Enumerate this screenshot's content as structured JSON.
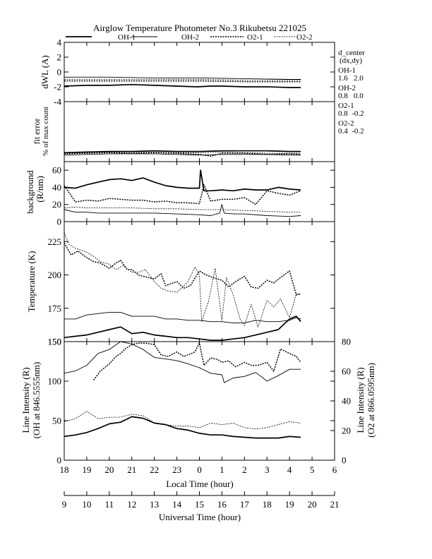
{
  "title": "Airglow Temperature Photometer No.3 Rikubetsu 221025",
  "legend": [
    {
      "label": "OH-1",
      "style": "solid-thick"
    },
    {
      "label": "OH-2",
      "style": "solid-thin"
    },
    {
      "label": "O2-1",
      "style": "dotted-thick"
    },
    {
      "label": "O2-2",
      "style": "dotted-thin"
    }
  ],
  "side_info": {
    "header1": "d_center",
    "header2": "(dx,dy)",
    "entries": [
      {
        "name": "OH-1",
        "values": "1.6   2.0"
      },
      {
        "name": "OH-2",
        "values": "0.8   0.0"
      },
      {
        "name": "O2-1",
        "values": "0.8  -0.2"
      },
      {
        "name": "O2-2",
        "values": "0.4  -0.2"
      }
    ]
  },
  "axes": {
    "local_time_label": "Local Time (hour)",
    "local_time_ticks": [
      "18",
      "19",
      "20",
      "21",
      "22",
      "23",
      "0",
      "1",
      "2",
      "3",
      "4",
      "5",
      "6"
    ],
    "ut_label": "Universal Time (hour)",
    "ut_ticks": [
      "9",
      "10",
      "11",
      "12",
      "13",
      "14",
      "15",
      "16",
      "17",
      "18",
      "19",
      "20",
      "21"
    ]
  },
  "chart_data": [
    {
      "type": "line",
      "panel": "dwl",
      "ylabel": "dWL (A)",
      "ylim": [
        -4,
        4
      ],
      "yticks": [
        "4",
        "2",
        "0",
        "-2",
        "-4"
      ],
      "x_unit": "local time hour (18 = 0 offset, continuing past midnight as 24+)",
      "series": [
        {
          "name": "OH-1",
          "x": [
            18.0,
            19.0,
            20.0,
            21.0,
            22.0,
            23.0,
            23.9,
            24.5,
            25.0,
            26.0,
            27.0,
            28.0,
            28.5
          ],
          "y": [
            -1.9,
            -1.8,
            -1.8,
            -1.7,
            -1.8,
            -1.9,
            -2.0,
            -1.9,
            -1.9,
            -2.0,
            -2.0,
            -2.1,
            -2.1
          ]
        },
        {
          "name": "OH-2",
          "x": [
            18.0,
            20.0,
            22.0,
            24.0,
            26.0,
            28.0,
            28.5
          ],
          "y": [
            -0.7,
            -0.7,
            -0.8,
            -0.8,
            -0.9,
            -1.0,
            -1.0
          ]
        },
        {
          "name": "O2-1",
          "x": [
            18.0,
            20.0,
            22.0,
            24.0,
            26.0,
            28.0,
            28.5
          ],
          "y": [
            -1.2,
            -1.2,
            -1.2,
            -1.2,
            -1.3,
            -1.3,
            -1.3
          ]
        },
        {
          "name": "O2-2",
          "x": [
            18.0,
            20.0,
            22.0,
            24.0,
            26.0,
            28.0,
            28.5
          ],
          "y": [
            -1.0,
            -1.0,
            -1.0,
            -1.0,
            -1.1,
            -1.1,
            -1.1
          ]
        }
      ]
    },
    {
      "type": "line",
      "panel": "fit_error",
      "ylabel": "fit error",
      "ylabel2": "% of max count",
      "ylim": [
        0,
        5
      ],
      "series": [
        {
          "name": "OH-1",
          "x": [
            18.0,
            19.0,
            20.0,
            21.0,
            22.0,
            23.0,
            24.0,
            25.0,
            26.0,
            27.0,
            28.0,
            28.5
          ],
          "y": [
            0.75,
            0.8,
            0.85,
            0.85,
            0.9,
            0.85,
            0.85,
            0.9,
            0.9,
            0.9,
            0.85,
            0.85
          ]
        },
        {
          "name": "OH-2",
          "x": [
            18.0,
            19.0,
            20.0,
            21.0,
            22.0,
            23.0,
            24.0,
            25.0,
            26.0,
            27.0,
            28.0,
            28.5
          ],
          "y": [
            0.55,
            0.6,
            0.65,
            0.65,
            0.65,
            0.6,
            0.55,
            0.6,
            0.6,
            0.6,
            0.55,
            0.55
          ]
        },
        {
          "name": "O2-1",
          "x": [
            18.0,
            19.0,
            20.0,
            21.0,
            22.0,
            23.0,
            24.0,
            24.5,
            25.0,
            26.0,
            27.0,
            28.0,
            28.5
          ],
          "y": [
            0.65,
            0.7,
            0.75,
            0.7,
            0.75,
            0.7,
            0.6,
            0.45,
            0.7,
            0.7,
            0.6,
            0.65,
            0.6
          ]
        },
        {
          "name": "O2-2",
          "x": [
            18.0,
            19.0,
            20.0,
            21.0,
            22.0,
            23.0,
            24.0,
            25.0,
            26.0,
            27.0,
            28.0,
            28.5
          ],
          "y": [
            0.7,
            0.75,
            0.8,
            0.8,
            0.8,
            0.75,
            0.75,
            0.8,
            0.75,
            0.7,
            0.7,
            0.7
          ]
        }
      ]
    },
    {
      "type": "line",
      "panel": "background",
      "ylabel": "background",
      "ylabel2": "(R/nm)",
      "ylim": [
        0,
        70
      ],
      "yticks": [
        "0",
        "20",
        "40",
        "60"
      ],
      "series": [
        {
          "name": "OH-1",
          "x": [
            18.0,
            18.5,
            19.0,
            19.5,
            20.0,
            20.5,
            21.0,
            21.5,
            22.0,
            22.5,
            23.0,
            23.5,
            24.0,
            24.05,
            24.2,
            24.5,
            25.0,
            25.5,
            26.0,
            26.5,
            27.0,
            27.5,
            28.0,
            28.5
          ],
          "y": [
            40,
            39,
            43,
            46,
            49,
            50,
            48,
            51,
            46,
            42,
            40,
            39,
            39,
            60,
            36,
            36,
            37,
            36,
            38,
            37,
            37,
            40,
            38,
            37
          ]
        },
        {
          "name": "OH-2",
          "x": [
            18.0,
            18.5,
            19.0,
            19.5,
            20.0,
            20.5,
            21.0,
            22.0,
            23.0,
            24.0,
            24.5,
            24.9,
            25.0,
            25.1,
            25.5,
            26.0,
            27.0,
            28.0,
            28.5
          ],
          "y": [
            14,
            11,
            11,
            10,
            10,
            10,
            10,
            10,
            9,
            8,
            7,
            10,
            20,
            10,
            9,
            9,
            7,
            6,
            7
          ]
        },
        {
          "name": "O2-1",
          "x": [
            18.0,
            18.5,
            19.0,
            19.5,
            20.0,
            20.5,
            21.0,
            21.5,
            22.0,
            22.5,
            23.0,
            23.5,
            24.0,
            24.2,
            24.5,
            25.0,
            25.5,
            26.0,
            26.5,
            27.0,
            27.5,
            28.0,
            28.5
          ],
          "y": [
            42,
            23,
            25,
            24,
            27,
            26,
            25,
            25,
            23,
            24,
            22,
            22,
            21,
            43,
            24,
            26,
            26,
            28,
            20,
            36,
            33,
            31,
            36
          ]
        },
        {
          "name": "O2-2",
          "x": [
            18.0,
            18.5,
            19.0,
            20.0,
            21.0,
            22.0,
            23.0,
            24.0,
            25.0,
            26.0,
            27.0,
            28.0,
            28.5
          ],
          "y": [
            16,
            17,
            16,
            16,
            16,
            15,
            15,
            14,
            14,
            13,
            12,
            11,
            11
          ]
        }
      ]
    },
    {
      "type": "line",
      "panel": "temperature",
      "ylabel": "Temperature (K)",
      "ylim": [
        150,
        240
      ],
      "yticks": [
        "150",
        "175",
        "200",
        "225"
      ],
      "series": [
        {
          "name": "OH-1",
          "x": [
            18.0,
            18.5,
            19.0,
            19.5,
            20.0,
            20.5,
            21.0,
            21.5,
            22.0,
            22.5,
            23.0,
            23.5,
            24.0,
            24.5,
            25.0,
            25.5,
            26.0,
            26.5,
            27.0,
            27.5,
            28.0,
            28.3,
            28.5
          ],
          "y": [
            153,
            154,
            155,
            157,
            159,
            161,
            156,
            157,
            155,
            154,
            153,
            153,
            152,
            151,
            151,
            152,
            153,
            155,
            157,
            159,
            167,
            169,
            165
          ]
        },
        {
          "name": "OH-2",
          "x": [
            18.0,
            18.5,
            19.0,
            19.5,
            20.0,
            20.5,
            21.0,
            21.5,
            22.0,
            22.5,
            23.0,
            23.5,
            24.0,
            24.5,
            25.0,
            25.5,
            26.0,
            26.5,
            27.0,
            27.5,
            28.0,
            28.3,
            28.5
          ],
          "y": [
            167,
            167,
            170,
            171,
            172,
            172,
            169,
            169,
            169,
            167,
            167,
            166,
            166,
            165,
            165,
            164,
            164,
            166,
            165,
            165,
            166,
            168,
            167
          ]
        },
        {
          "name": "O2-1",
          "x": [
            18.0,
            18.3,
            18.6,
            19.0,
            19.3,
            19.6,
            20.0,
            20.3,
            20.5,
            20.8,
            21.0,
            21.3,
            21.5,
            22.0,
            22.3,
            22.5,
            23.0,
            23.3,
            23.6,
            24.0,
            24.3,
            24.6,
            25.0,
            25.3,
            25.6,
            26.0,
            26.3,
            26.6,
            27.0,
            27.3,
            27.6,
            28.0,
            28.3,
            28.5
          ],
          "y": [
            224,
            215,
            218,
            213,
            210,
            209,
            205,
            209,
            211,
            204,
            204,
            200,
            199,
            197,
            201,
            192,
            195,
            190,
            192,
            203,
            200,
            198,
            196,
            191,
            195,
            199,
            191,
            190,
            196,
            194,
            198,
            203,
            185,
            186
          ]
        },
        {
          "name": "O2-2",
          "x": [
            18.0,
            18.2,
            18.5,
            19.0,
            19.3,
            19.6,
            20.0,
            20.3,
            20.6,
            21.0,
            21.3,
            21.6,
            22.0,
            22.3,
            22.6,
            23.0,
            23.2,
            23.5,
            23.8,
            24.0,
            24.1,
            24.4,
            24.7,
            25.0,
            25.2,
            25.5,
            25.8,
            26.0,
            26.3,
            26.6,
            27.0,
            27.3,
            27.6,
            28.0,
            28.3,
            28.5
          ],
          "y": [
            232,
            223,
            220,
            217,
            214,
            210,
            208,
            204,
            207,
            202,
            202,
            204,
            195,
            190,
            188,
            187,
            190,
            195,
            206,
            200,
            165,
            180,
            205,
            166,
            198,
            185,
            167,
            162,
            178,
            161,
            181,
            176,
            182,
            168,
            186,
            185
          ]
        }
      ]
    },
    {
      "type": "line",
      "panel": "line_intensity",
      "ylabel": "Line Intensity (R)",
      "ylabel2": "(OH at 846.5555nm)",
      "ylim": [
        0,
        150
      ],
      "yticks": [
        "0",
        "50",
        "100",
        "150"
      ],
      "y2label": "Line Intensity (R)",
      "y2label2": "(O2 at 866.0595nm)",
      "y2lim": [
        0,
        80
      ],
      "y2ticks": [
        "0",
        "20",
        "40",
        "60",
        "80"
      ],
      "series": [
        {
          "name": "OH-1",
          "axis": "left",
          "x": [
            18.0,
            18.5,
            19.0,
            19.5,
            20.0,
            20.5,
            21.0,
            21.5,
            22.0,
            22.5,
            23.0,
            23.5,
            24.0,
            24.5,
            25.0,
            25.5,
            26.0,
            26.5,
            27.0,
            27.5,
            28.0,
            28.5
          ],
          "y": [
            30,
            32,
            35,
            40,
            46,
            48,
            55,
            53,
            47,
            45,
            40,
            38,
            34,
            32,
            32,
            30,
            29,
            28,
            28,
            28,
            30,
            29
          ]
        },
        {
          "name": "OH-2",
          "axis": "left",
          "x": [
            18.0,
            18.5,
            19.0,
            19.5,
            20.0,
            20.5,
            21.0,
            21.5,
            22.0,
            22.5,
            23.0,
            23.5,
            24.0,
            24.5,
            25.0,
            25.1,
            25.5,
            26.0,
            26.5,
            27.0,
            27.5,
            28.0,
            28.5
          ],
          "y": [
            110,
            113,
            120,
            135,
            140,
            150,
            147,
            140,
            130,
            128,
            126,
            122,
            117,
            110,
            108,
            98,
            104,
            106,
            111,
            100,
            107,
            115,
            115
          ]
        },
        {
          "name": "O2-1",
          "axis": "right",
          "x": [
            19.3,
            19.6,
            20.0,
            20.3,
            20.5,
            20.7,
            21.0,
            21.3,
            21.6,
            22.0,
            22.3,
            22.6,
            23.0,
            23.3,
            23.5,
            23.8,
            24.0,
            24.2,
            24.5,
            24.8,
            25.0,
            25.3,
            25.6,
            26.0,
            26.3,
            26.6,
            27.0,
            27.3,
            27.6,
            28.0,
            28.3,
            28.5
          ],
          "y": [
            54,
            60,
            65,
            70,
            72,
            75,
            78,
            79,
            79,
            78,
            71,
            70,
            73,
            70,
            71,
            73,
            79,
            64,
            69,
            68,
            66,
            67,
            63,
            66,
            64,
            64,
            66,
            60,
            75,
            72,
            70,
            66
          ]
        },
        {
          "name": "O2-2",
          "axis": "right",
          "x": [
            18.0,
            18.5,
            19.0,
            19.5,
            20.0,
            20.5,
            21.0,
            21.5,
            22.0,
            22.5,
            23.0,
            23.5,
            24.0,
            24.5,
            25.0,
            25.5,
            26.0,
            26.5,
            27.0,
            27.5,
            28.0,
            28.5
          ],
          "y": [
            26,
            28,
            33,
            28,
            29,
            29,
            31,
            30,
            25,
            24,
            23,
            23,
            22,
            25,
            24,
            25,
            22,
            21,
            22,
            24,
            26,
            25
          ]
        }
      ]
    }
  ]
}
